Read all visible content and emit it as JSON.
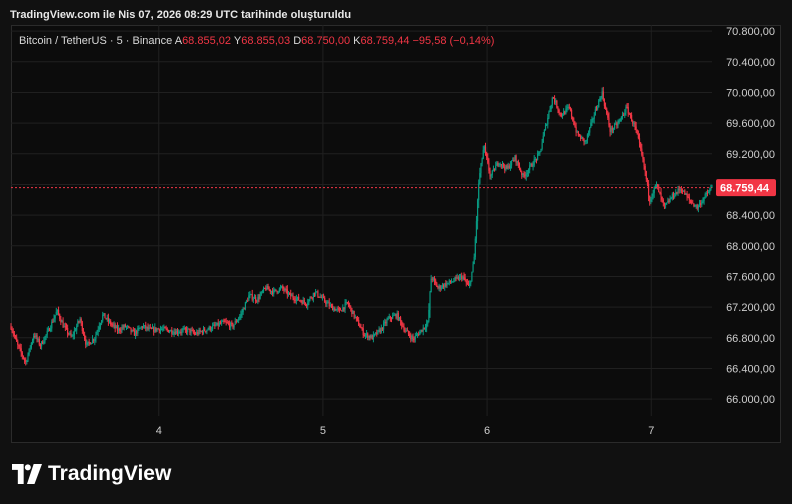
{
  "header": {
    "created": "TradingView.com ile Nis 07, 2026 08:29 UTC tarihinde oluşturuldu"
  },
  "legend": {
    "symbol": "Bitcoin / TetherUS · 5 · Binance",
    "open_label": "A",
    "open": "68.855,02",
    "high_label": "Y",
    "high": "68.855,03",
    "low_label": "D",
    "low": "68.750,00",
    "close_label": "K",
    "close": "68.759,44",
    "change": "−95,58 (−0,14%)"
  },
  "brand": {
    "name": "TradingView"
  },
  "colors": {
    "up": "#089981",
    "down": "#f23645",
    "grid": "#202020",
    "last_price": "#f23645"
  },
  "chart_data": {
    "type": "candlestick",
    "y_ticks": [
      "70.800,00",
      "70.400,00",
      "70.000,00",
      "69.600,00",
      "69.200,00",
      "68.800,00",
      "68.400,00",
      "68.000,00",
      "67.600,00",
      "67.200,00",
      "66.800,00",
      "66.400,00",
      "66.000,00"
    ],
    "y_tick_values": [
      70800,
      70400,
      70000,
      69600,
      69200,
      68800,
      68400,
      68000,
      67600,
      67200,
      66800,
      66400,
      66000
    ],
    "x_ticks": [
      "4",
      "5",
      "6",
      "7"
    ],
    "ylim": [
      65780,
      70880
    ],
    "xlim": [
      3.1,
      7.37
    ],
    "last_price": 68759.44,
    "last_price_label": "68.759,44",
    "grid": true,
    "close_path": [
      [
        3.1,
        66950
      ],
      [
        3.14,
        66700
      ],
      [
        3.19,
        66480
      ],
      [
        3.24,
        66850
      ],
      [
        3.28,
        66700
      ],
      [
        3.33,
        66900
      ],
      [
        3.38,
        67150
      ],
      [
        3.42,
        66950
      ],
      [
        3.47,
        66800
      ],
      [
        3.52,
        67050
      ],
      [
        3.56,
        66700
      ],
      [
        3.61,
        66800
      ],
      [
        3.66,
        67100
      ],
      [
        3.7,
        67000
      ],
      [
        3.75,
        66900
      ],
      [
        3.8,
        66950
      ],
      [
        3.85,
        66850
      ],
      [
        3.9,
        66950
      ],
      [
        3.95,
        66900
      ],
      [
        4.0,
        66920
      ],
      [
        4.1,
        66880
      ],
      [
        4.18,
        66900
      ],
      [
        4.22,
        66850
      ],
      [
        4.28,
        66900
      ],
      [
        4.34,
        66950
      ],
      [
        4.4,
        67000
      ],
      [
        4.45,
        66950
      ],
      [
        4.5,
        67100
      ],
      [
        4.55,
        67350
      ],
      [
        4.6,
        67300
      ],
      [
        4.65,
        67450
      ],
      [
        4.7,
        67400
      ],
      [
        4.75,
        67450
      ],
      [
        4.8,
        67350
      ],
      [
        4.85,
        67300
      ],
      [
        4.9,
        67250
      ],
      [
        4.95,
        67400
      ],
      [
        5.0,
        67300
      ],
      [
        5.05,
        67200
      ],
      [
        5.1,
        67150
      ],
      [
        5.15,
        67250
      ],
      [
        5.2,
        67050
      ],
      [
        5.25,
        66850
      ],
      [
        5.3,
        66800
      ],
      [
        5.35,
        66900
      ],
      [
        5.4,
        67050
      ],
      [
        5.45,
        67100
      ],
      [
        5.5,
        66900
      ],
      [
        5.55,
        66780
      ],
      [
        5.6,
        66900
      ],
      [
        5.64,
        67000
      ],
      [
        5.66,
        67600
      ],
      [
        5.7,
        67450
      ],
      [
        5.75,
        67500
      ],
      [
        5.8,
        67550
      ],
      [
        5.85,
        67600
      ],
      [
        5.89,
        67450
      ],
      [
        5.92,
        67800
      ],
      [
        5.95,
        68850
      ],
      [
        5.98,
        69300
      ],
      [
        6.02,
        68900
      ],
      [
        6.07,
        69100
      ],
      [
        6.12,
        69000
      ],
      [
        6.17,
        69150
      ],
      [
        6.22,
        68900
      ],
      [
        6.27,
        69050
      ],
      [
        6.32,
        69200
      ],
      [
        6.35,
        69500
      ],
      [
        6.4,
        69950
      ],
      [
        6.45,
        69700
      ],
      [
        6.5,
        69800
      ],
      [
        6.55,
        69450
      ],
      [
        6.6,
        69350
      ],
      [
        6.65,
        69700
      ],
      [
        6.7,
        70000
      ],
      [
        6.75,
        69500
      ],
      [
        6.8,
        69600
      ],
      [
        6.85,
        69800
      ],
      [
        6.9,
        69550
      ],
      [
        6.93,
        69300
      ],
      [
        6.96,
        69000
      ],
      [
        6.99,
        68600
      ],
      [
        7.03,
        68800
      ],
      [
        7.08,
        68500
      ],
      [
        7.13,
        68650
      ],
      [
        7.18,
        68750
      ],
      [
        7.23,
        68600
      ],
      [
        7.28,
        68500
      ],
      [
        7.33,
        68650
      ],
      [
        7.37,
        68760
      ]
    ]
  }
}
